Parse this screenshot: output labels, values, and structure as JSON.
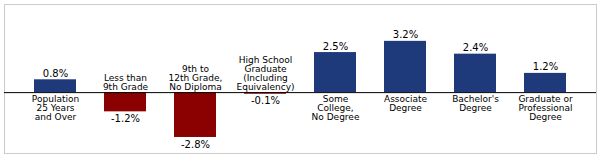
{
  "chart_data": {
    "type": "bar",
    "categories": [
      "Population\n25 Years\nand Over",
      "Less than\n9th Grade",
      "9th to\n12th Grade,\nNo Diploma",
      "High School\nGraduate\n(Including\nEquivalency)",
      "Some\nCollege,\nNo Degree",
      "Associate\nDegree",
      "Bachelor's\nDegree",
      "Graduate or\nProfessional\nDegree"
    ],
    "values": [
      0.8,
      -1.2,
      -2.8,
      -0.1,
      2.5,
      3.2,
      2.4,
      1.2
    ],
    "value_labels": [
      "0.8%",
      "-1.2%",
      "-2.8%",
      "-0.1%",
      "2.5%",
      "3.2%",
      "2.4%",
      "1.2%"
    ],
    "colors": [
      "#1F3A7A",
      "#8B0000",
      "#8B0000",
      "#8B0000",
      "#1F3A7A",
      "#1F3A7A",
      "#1F3A7A",
      "#1F3A7A"
    ],
    "ylim": [
      -3.8,
      5.5
    ],
    "data_labels": true,
    "tick_labels": "x",
    "grid": false
  }
}
